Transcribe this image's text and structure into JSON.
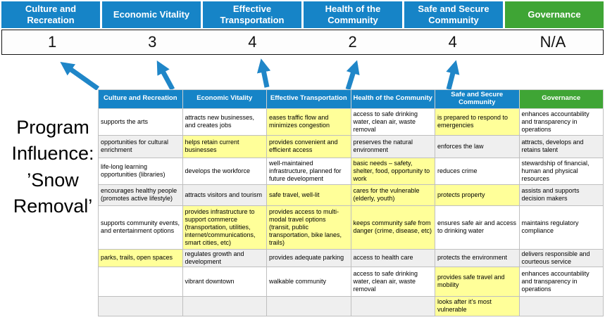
{
  "title": "Program Influence: ’Snow Removal’",
  "colors": {
    "pillar_blue": "#1684c7",
    "governance_green": "#3fa535",
    "highlight_yellow": "#ffff99",
    "arrow_blue": "#1f86c8"
  },
  "pillars": [
    {
      "label": "Culture and Recreation",
      "score": "1",
      "color": "#1684c7"
    },
    {
      "label": "Economic Vitality",
      "score": "3",
      "color": "#1684c7"
    },
    {
      "label": "Effective Transportation",
      "score": "4",
      "color": "#1684c7"
    },
    {
      "label": "Health of the Community",
      "score": "2",
      "color": "#1684c7"
    },
    {
      "label": "Safe and Secure Community",
      "score": "4",
      "color": "#1684c7"
    },
    {
      "label": "Governance",
      "score": "N/A",
      "color": "#3fa535"
    }
  ],
  "matrix": {
    "headers": [
      {
        "label": "Culture and Recreation",
        "color": "#1684c7"
      },
      {
        "label": "Economic Vitality",
        "color": "#1684c7"
      },
      {
        "label": "Effective Transportation",
        "color": "#1684c7"
      },
      {
        "label": "Health of the Community",
        "color": "#1684c7"
      },
      {
        "label": "Safe and Secure Community",
        "color": "#1684c7"
      },
      {
        "label": "Governance",
        "color": "#3fa535"
      }
    ],
    "rows": [
      [
        {
          "text": "supports the arts",
          "hl": false
        },
        {
          "text": "attracts new businesses, and creates jobs",
          "hl": false
        },
        {
          "text": "eases traffic flow and minimizes congestion",
          "hl": true
        },
        {
          "text": "access to safe drinking water, clean air, waste removal",
          "hl": false
        },
        {
          "text": "is prepared to respond to emergencies",
          "hl": true
        },
        {
          "text": "enhances accountability and transparency in operations",
          "hl": false
        }
      ],
      [
        {
          "text": "opportunities for cultural enrichment",
          "hl": false
        },
        {
          "text": "helps retain current businesses",
          "hl": true
        },
        {
          "text": "provides convenient and efficient access",
          "hl": true
        },
        {
          "text": "preserves the natural environment",
          "hl": false
        },
        {
          "text": "enforces the law",
          "hl": false
        },
        {
          "text": "attracts, develops and retains talent",
          "hl": false
        }
      ],
      [
        {
          "text": "life-long learning opportunities (libraries)",
          "hl": false
        },
        {
          "text": "develops the workforce",
          "hl": false
        },
        {
          "text": "well-maintained infrastructure, planned for future development",
          "hl": false
        },
        {
          "text": "basic needs – safety, shelter, food, opportunity to work",
          "hl": true
        },
        {
          "text": "reduces crime",
          "hl": false
        },
        {
          "text": "stewardship of financial, human and physical resources",
          "hl": false
        }
      ],
      [
        {
          "text": "encourages healthy people (promotes active lifestyle)",
          "hl": false
        },
        {
          "text": "attracts visitors and tourism",
          "hl": false
        },
        {
          "text": "safe travel, well-lit",
          "hl": true
        },
        {
          "text": "cares for the vulnerable (elderly, youth)",
          "hl": true
        },
        {
          "text": "protects property",
          "hl": true
        },
        {
          "text": "assists and supports decision makers",
          "hl": false
        }
      ],
      [
        {
          "text": "supports community events, and entertainment options",
          "hl": false
        },
        {
          "text": "provides infrastructure to support commerce (transportation, utilities, internet/communications, smart cities, etc)",
          "hl": true
        },
        {
          "text": "provides access to multi-modal travel options (transit, public transportation, bike lanes, trails)",
          "hl": true
        },
        {
          "text": "keeps community safe from danger (crime, disease, etc)",
          "hl": true
        },
        {
          "text": "ensures safe air and access to drinking water",
          "hl": false
        },
        {
          "text": "maintains regulatory compliance",
          "hl": false
        }
      ],
      [
        {
          "text": "parks, trails, open spaces",
          "hl": true
        },
        {
          "text": "regulates growth and development",
          "hl": false
        },
        {
          "text": "provides adequate parking",
          "hl": false
        },
        {
          "text": "access to health care",
          "hl": false
        },
        {
          "text": "protects the environment",
          "hl": false
        },
        {
          "text": "delivers responsible and courteous service",
          "hl": false
        }
      ],
      [
        {
          "text": "",
          "hl": false
        },
        {
          "text": "vibrant downtown",
          "hl": false
        },
        {
          "text": "walkable community",
          "hl": false
        },
        {
          "text": "access to safe drinking water, clean air, waste removal",
          "hl": false
        },
        {
          "text": "provides safe travel and mobility",
          "hl": true
        },
        {
          "text": "enhances accountability and transparency in operations",
          "hl": false
        }
      ],
      [
        {
          "text": "",
          "hl": false
        },
        {
          "text": "",
          "hl": false
        },
        {
          "text": "",
          "hl": false
        },
        {
          "text": "",
          "hl": false
        },
        {
          "text": "looks after it’s most vulnerable",
          "hl": true
        },
        {
          "text": "",
          "hl": false
        }
      ]
    ]
  }
}
